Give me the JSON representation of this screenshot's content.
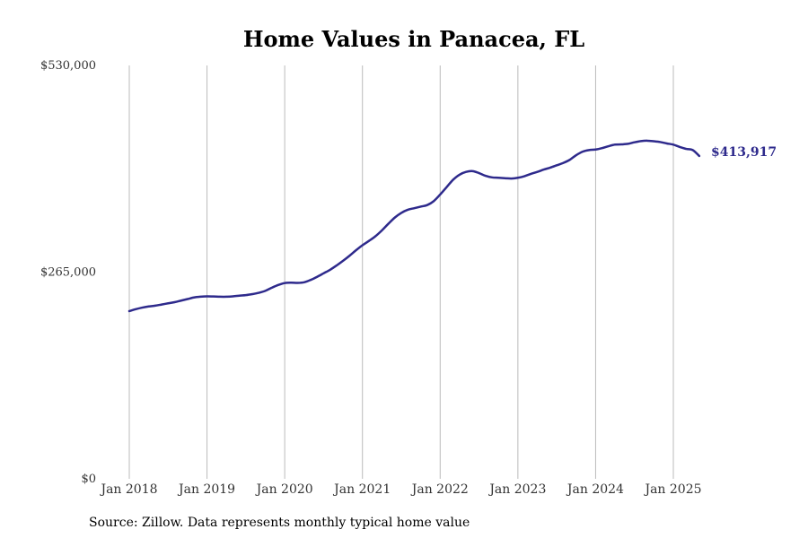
{
  "chart_data": {
    "type": "line",
    "title": "Home Values in Panacea, FL",
    "xlabel": "",
    "ylabel": "",
    "ylim": [
      0,
      530000
    ],
    "xlim": [
      "2018-01",
      "2025-05"
    ],
    "y_tick_labels": [
      "$0",
      "$265,000",
      "$530,000"
    ],
    "y_ticks": [
      0,
      265000,
      530000
    ],
    "x_tick_labels": [
      "Jan 2018",
      "Jan 2019",
      "Jan 2020",
      "Jan 2021",
      "Jan 2022",
      "Jan 2023",
      "Jan 2024",
      "Jan 2025"
    ],
    "x_ticks": [
      "2018-01",
      "2019-01",
      "2020-01",
      "2021-01",
      "2022-01",
      "2023-01",
      "2024-01",
      "2025-01"
    ],
    "grid": "vertical",
    "color": "#2e2a8c",
    "end_label": "$413,917",
    "x": [
      "2018-01",
      "2018-02",
      "2018-03",
      "2018-04",
      "2018-05",
      "2018-06",
      "2018-07",
      "2018-08",
      "2018-09",
      "2018-10",
      "2018-11",
      "2018-12",
      "2019-01",
      "2019-02",
      "2019-03",
      "2019-04",
      "2019-05",
      "2019-06",
      "2019-07",
      "2019-08",
      "2019-09",
      "2019-10",
      "2019-11",
      "2019-12",
      "2020-01",
      "2020-02",
      "2020-03",
      "2020-04",
      "2020-05",
      "2020-06",
      "2020-07",
      "2020-08",
      "2020-09",
      "2020-10",
      "2020-11",
      "2020-12",
      "2021-01",
      "2021-02",
      "2021-03",
      "2021-04",
      "2021-05",
      "2021-06",
      "2021-07",
      "2021-08",
      "2021-09",
      "2021-10",
      "2021-11",
      "2021-12",
      "2022-01",
      "2022-02",
      "2022-03",
      "2022-04",
      "2022-05",
      "2022-06",
      "2022-07",
      "2022-08",
      "2022-09",
      "2022-10",
      "2022-11",
      "2022-12",
      "2023-01",
      "2023-02",
      "2023-03",
      "2023-04",
      "2023-05",
      "2023-06",
      "2023-07",
      "2023-08",
      "2023-09",
      "2023-10",
      "2023-11",
      "2023-12",
      "2024-01",
      "2024-02",
      "2024-03",
      "2024-04",
      "2024-05",
      "2024-06",
      "2024-07",
      "2024-08",
      "2024-09",
      "2024-10",
      "2024-11",
      "2024-12",
      "2025-01",
      "2025-02",
      "2025-03",
      "2025-04",
      "2025-05"
    ],
    "series": [
      {
        "values": [
          215000,
          217500,
          219500,
          221000,
          222000,
          223500,
          225000,
          226500,
          228500,
          230500,
          232500,
          233500,
          234000,
          233800,
          233500,
          233500,
          234000,
          234800,
          235500,
          236800,
          238500,
          241000,
          245000,
          248500,
          251000,
          251500,
          251200,
          252000,
          255000,
          259000,
          263500,
          268000,
          273500,
          279500,
          286000,
          293000,
          299500,
          305000,
          311000,
          318500,
          327000,
          335000,
          341000,
          345000,
          347000,
          349000,
          351000,
          356000,
          364500,
          374000,
          383500,
          390000,
          393500,
          394500,
          392000,
          388500,
          386500,
          386000,
          385500,
          385000,
          386000,
          388000,
          391000,
          393500,
          396500,
          399000,
          402000,
          405000,
          409000,
          415000,
          419500,
          421500,
          422200,
          424000,
          426500,
          428500,
          428800,
          429500,
          431500,
          433000,
          433500,
          432800,
          431800,
          430000,
          428500,
          425500,
          423000,
          421500,
          413917
        ]
      }
    ]
  },
  "footer": {
    "source": "Source: Zillow. Data represents monthly typical home value"
  }
}
